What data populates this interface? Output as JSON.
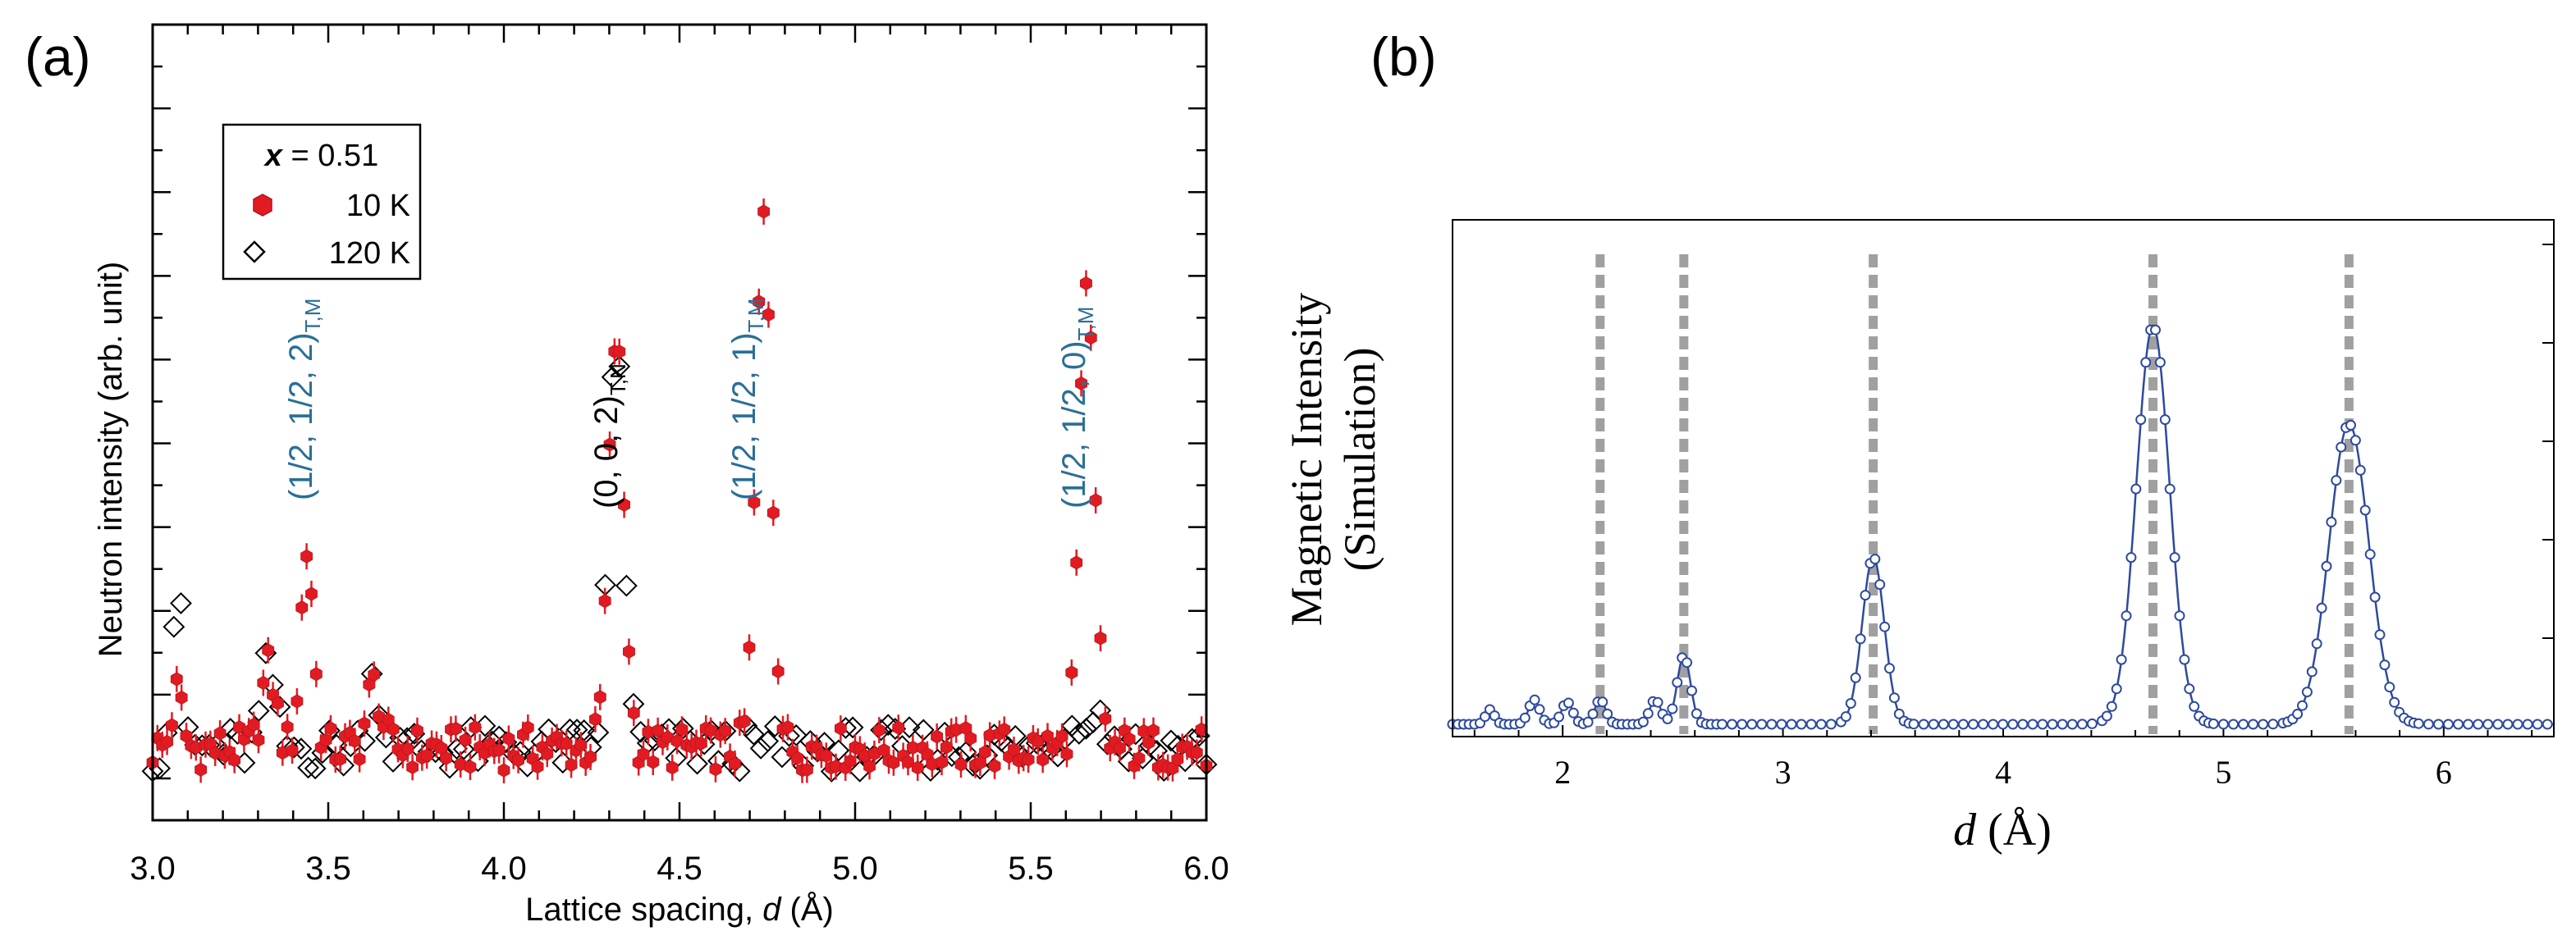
{
  "chart_data": [
    {
      "panel": "(a)",
      "type": "scatter",
      "xlabel_main": "Lattice spacing, ",
      "xlabel_var": "d",
      "xlabel_unit": " (Å)",
      "ylabel": "Neutron intensity (arb. unit)",
      "xlim": [
        3.0,
        6.0
      ],
      "ylim": [
        0,
        1
      ],
      "xticks": [
        "3.0",
        "3.5",
        "4.0",
        "4.5",
        "5.0",
        "5.5",
        "6.0"
      ],
      "legend": {
        "title_var": "x",
        "title_rest": " = 0.51",
        "entries": [
          {
            "label": "10 K",
            "marker": "filled-hexagon",
            "color": "#e21b22"
          },
          {
            "label": "120 K",
            "marker": "open-diamond",
            "color": "#000000"
          }
        ]
      },
      "annotations": [
        {
          "text": "(1/2, 1/2, 2)",
          "sub": "T,M",
          "x": 3.44,
          "color": "#2a6f97"
        },
        {
          "text": "(0, 0, 2)",
          "sub": "T,N",
          "x": 4.32,
          "color": "#000000"
        },
        {
          "text": "(1/2, 1/2, 1)",
          "sub": "T,M",
          "x": 4.74,
          "color": "#2a6f97"
        },
        {
          "text": "(1/2, 1/2, 0)",
          "sub": "T,M",
          "x": 5.66,
          "color": "#2a6f97"
        }
      ],
      "baseline": 0.09,
      "series": [
        {
          "name": "10 K",
          "x_start": 3.0,
          "x_end": 6.0,
          "points": 220,
          "peaks": [
            {
              "x": 3.07,
              "h": 0.07,
              "w": 0.015
            },
            {
              "x": 3.33,
              "h": 0.1,
              "w": 0.02
            },
            {
              "x": 3.44,
              "h": 0.25,
              "w": 0.018
            },
            {
              "x": 3.63,
              "h": 0.08,
              "w": 0.02
            },
            {
              "x": 4.32,
              "h": 0.52,
              "w": 0.022
            },
            {
              "x": 4.74,
              "h": 0.67,
              "w": 0.022
            },
            {
              "x": 5.66,
              "h": 0.57,
              "w": 0.022
            }
          ]
        },
        {
          "name": "120 K",
          "x_start": 3.0,
          "x_end": 6.0,
          "points": 150,
          "peaks": [
            {
              "x": 3.07,
              "h": 0.2,
              "w": 0.015
            },
            {
              "x": 3.33,
              "h": 0.1,
              "w": 0.02
            },
            {
              "x": 3.63,
              "h": 0.09,
              "w": 0.02
            },
            {
              "x": 4.32,
              "h": 0.52,
              "w": 0.022
            },
            {
              "x": 5.66,
              "h": 0.05,
              "w": 0.05
            }
          ]
        }
      ]
    },
    {
      "panel": "(b)",
      "type": "line",
      "xlabel_var": "d",
      "xlabel_unit": " (Å)",
      "ylabel_line1": "Magnetic Intensity",
      "ylabel_line2": "(Simulation)",
      "xlim": [
        1.5,
        6.5
      ],
      "ylim": [
        0,
        1.05
      ],
      "xticks": [
        "2",
        "3",
        "4",
        "5",
        "6"
      ],
      "dashed_lines_x": [
        2.17,
        2.55,
        3.41,
        4.68,
        5.57
      ],
      "baseline": 0.025,
      "series": [
        {
          "name": "simulation",
          "color": "#2e4a9e",
          "x_start": 1.5,
          "x_end": 6.5,
          "peaks": [
            {
              "x": 1.67,
              "h": 0.03,
              "w": 0.02
            },
            {
              "x": 1.87,
              "h": 0.05,
              "w": 0.025
            },
            {
              "x": 2.02,
              "h": 0.045,
              "w": 0.025
            },
            {
              "x": 2.17,
              "h": 0.05,
              "w": 0.025
            },
            {
              "x": 2.42,
              "h": 0.05,
              "w": 0.025
            },
            {
              "x": 2.55,
              "h": 0.14,
              "w": 0.03
            },
            {
              "x": 3.41,
              "h": 0.34,
              "w": 0.05
            },
            {
              "x": 4.68,
              "h": 0.81,
              "w": 0.075
            },
            {
              "x": 5.57,
              "h": 0.61,
              "w": 0.09
            }
          ]
        }
      ]
    }
  ]
}
